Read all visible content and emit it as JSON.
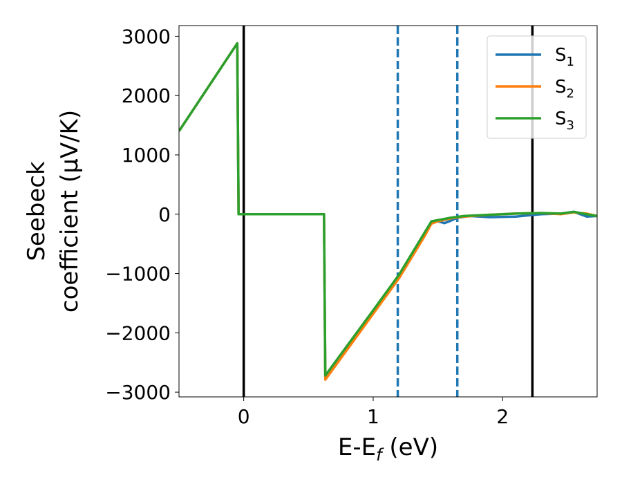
{
  "chart_data": {
    "type": "line",
    "xlabel": {
      "main": "E-E",
      "sub": "f",
      "unit": " (eV)"
    },
    "ylabel": {
      "line1": "Seebeck",
      "line2": "coefficient  (μV/K)"
    },
    "xlim": [
      -0.5,
      2.73
    ],
    "ylim": [
      -3080,
      3180
    ],
    "xticks": [
      0,
      1,
      2
    ],
    "xtick_labels": [
      "0",
      "1",
      "2"
    ],
    "yticks": [
      -3000,
      -2000,
      -1000,
      0,
      1000,
      2000,
      3000
    ],
    "ytick_labels": [
      "−3000",
      "−2000",
      "−1000",
      "0",
      "1000",
      "2000",
      "3000"
    ],
    "grid": false,
    "legend_position": "top-right",
    "vlines": [
      {
        "x": 0.0,
        "color": "#000000",
        "style": "solid"
      },
      {
        "x": 1.19,
        "color": "#1f77b4",
        "style": "dashed"
      },
      {
        "x": 1.65,
        "color": "#1f77b4",
        "style": "dashed"
      },
      {
        "x": 2.23,
        "color": "#000000",
        "style": "solid"
      }
    ],
    "series": [
      {
        "name": "S",
        "subscript": "1",
        "color": "#1f77b4",
        "x": [
          -0.5,
          -0.05,
          -0.04,
          0.62,
          0.63,
          1.0,
          1.2,
          1.4,
          1.45,
          1.5,
          1.55,
          1.6,
          1.65,
          1.75,
          1.9,
          2.1,
          2.3,
          2.45,
          2.55,
          2.65,
          2.73
        ],
        "y": [
          1400,
          2880,
          0,
          0,
          -2760,
          -1640,
          -1040,
          -340,
          -130,
          -120,
          -150,
          -110,
          -60,
          -30,
          -50,
          -40,
          0,
          10,
          40,
          -40,
          -30
        ]
      },
      {
        "name": "S",
        "subscript": "2",
        "color": "#ff7f0e",
        "x": [
          -0.5,
          -0.05,
          -0.04,
          0.62,
          0.63,
          1.0,
          1.2,
          1.4,
          1.45,
          1.5,
          1.6,
          1.7,
          1.9,
          2.1,
          2.3,
          2.45,
          2.55,
          2.65,
          2.73
        ],
        "y": [
          1400,
          2880,
          0,
          0,
          -2790,
          -1680,
          -1080,
          -360,
          -160,
          -120,
          -70,
          -40,
          -10,
          10,
          20,
          0,
          30,
          10,
          -30
        ]
      },
      {
        "name": "S",
        "subscript": "3",
        "color": "#2ca02c",
        "x": [
          -0.5,
          -0.05,
          -0.04,
          0.62,
          0.63,
          1.0,
          1.2,
          1.4,
          1.45,
          1.5,
          1.6,
          1.7,
          1.9,
          2.1,
          2.3,
          2.45,
          2.55,
          2.65,
          2.73
        ],
        "y": [
          1400,
          2880,
          0,
          0,
          -2720,
          -1620,
          -1020,
          -300,
          -120,
          -100,
          -60,
          -30,
          -10,
          10,
          20,
          10,
          40,
          0,
          -30
        ]
      }
    ]
  }
}
